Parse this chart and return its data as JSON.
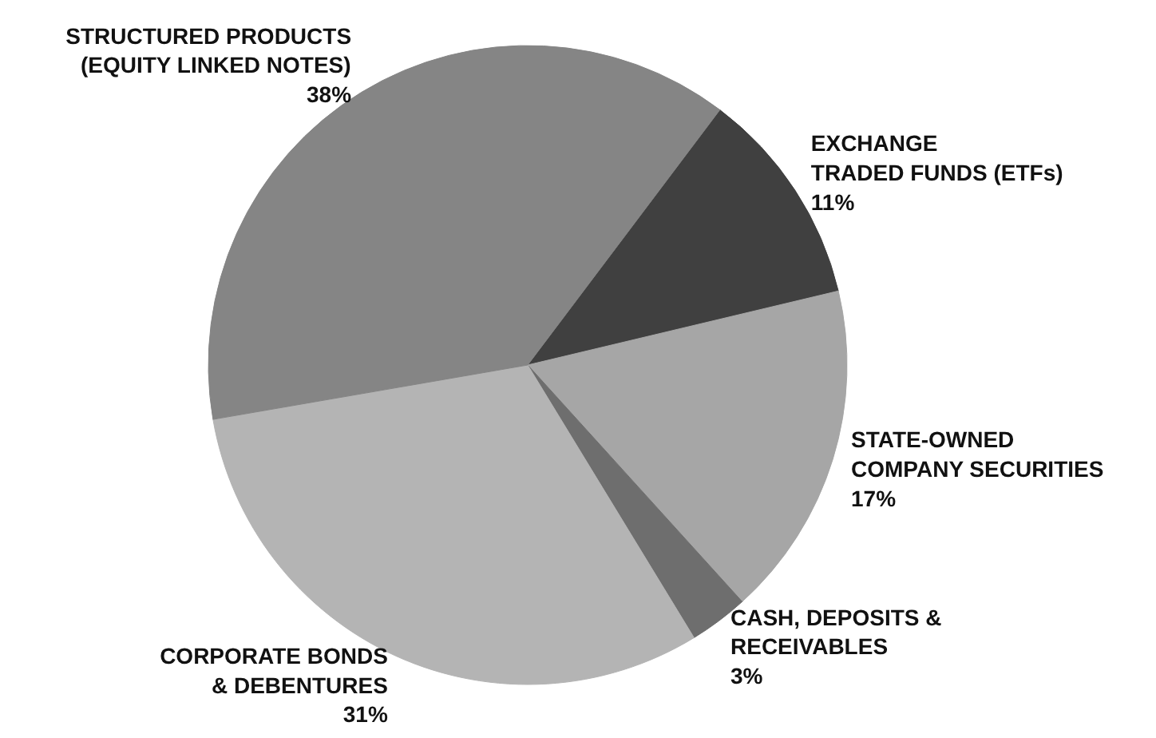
{
  "chart_data": {
    "type": "pie",
    "categories": [
      "EXCHANGE\nTRADED FUNDS (ETFs)",
      "STATE-OWNED\nCOMPANY SECURITIES",
      "CASH, DEPOSITS &\nRECEIVABLES",
      "CORPORATE BONDS\n& DEBENTURES",
      "STRUCTURED PRODUCTS\n(EQUITY LINKED NOTES)"
    ],
    "values": [
      11,
      17,
      3,
      31,
      38
    ],
    "value_labels": [
      "11%",
      "17%",
      "3%",
      "31%",
      "38%"
    ],
    "colors": [
      "#404040",
      "#a6a6a6",
      "#6e6e6e",
      "#b4b4b4",
      "#858585"
    ]
  }
}
